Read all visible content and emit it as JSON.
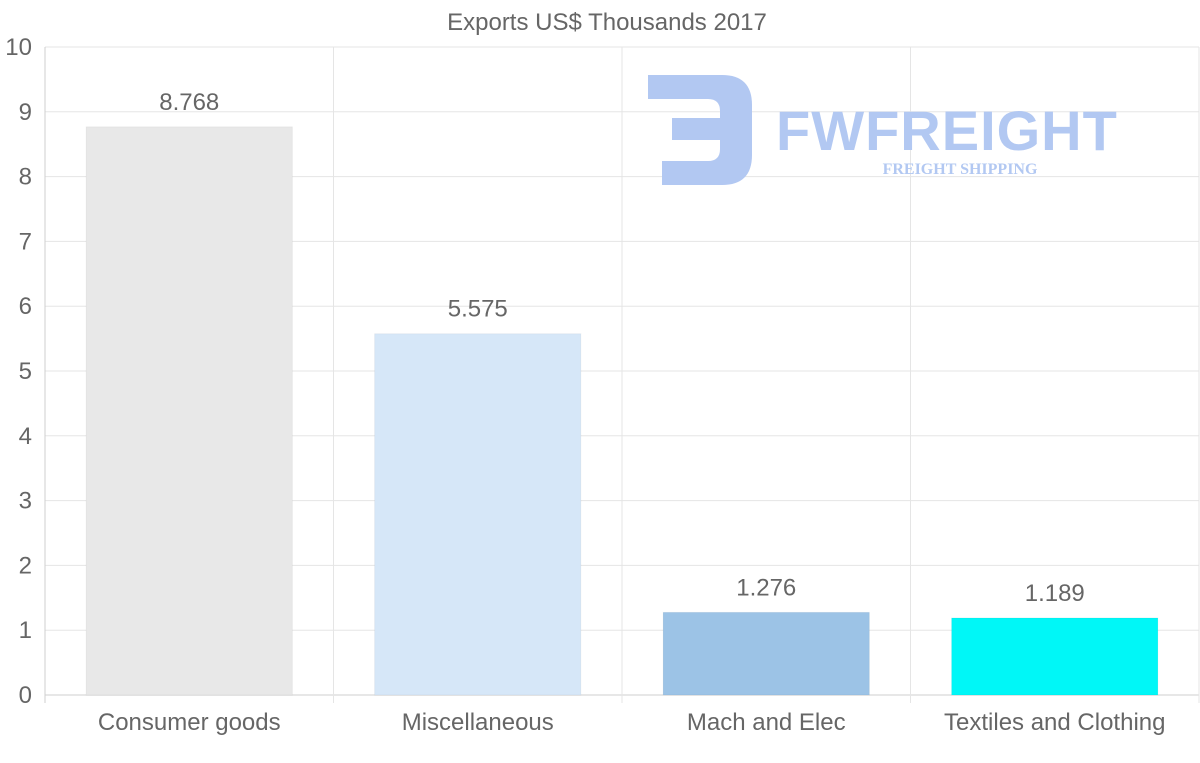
{
  "watermark": {
    "name": "FWFREIGHT",
    "tagline": "FREIGHT SHIPPING",
    "color": "#b2c8f2"
  },
  "chart_data": {
    "type": "bar",
    "title": "Exports US$ Thousands 2017",
    "categories": [
      "Consumer goods",
      "Miscellaneous",
      "Mach and Elec",
      "Textiles and Clothing"
    ],
    "values": [
      8.768,
      5.575,
      1.276,
      1.189
    ],
    "value_labels": [
      "8.768",
      "5.575",
      "1.276",
      "1.189"
    ],
    "bar_colors": [
      "#e8e8e8",
      "#d6e7f8",
      "#9cc3e6",
      "#00f7f7"
    ],
    "xlabel": "",
    "ylabel": "",
    "ylim": [
      0,
      10
    ],
    "yticks": [
      0,
      1,
      2,
      3,
      4,
      5,
      6,
      7,
      8,
      9,
      10
    ],
    "grid": true
  }
}
